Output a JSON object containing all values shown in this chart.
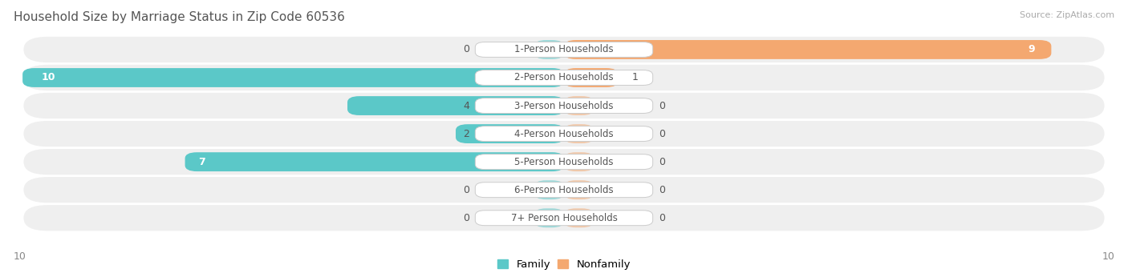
{
  "title": "Household Size by Marriage Status in Zip Code 60536",
  "source": "Source: ZipAtlas.com",
  "categories": [
    "1-Person Households",
    "2-Person Households",
    "3-Person Households",
    "4-Person Households",
    "5-Person Households",
    "6-Person Households",
    "7+ Person Households"
  ],
  "family_values": [
    0,
    10,
    4,
    2,
    7,
    0,
    0
  ],
  "nonfamily_values": [
    9,
    1,
    0,
    0,
    0,
    0,
    0
  ],
  "family_color": "#5bc8c8",
  "nonfamily_color": "#f4a870",
  "row_bg_color": "#efefef",
  "xlim": 10,
  "legend_family": "Family",
  "legend_nonfamily": "Nonfamily",
  "title_fontsize": 11,
  "source_fontsize": 8,
  "label_fontsize": 9,
  "tick_fontsize": 9,
  "bar_height": 0.68
}
